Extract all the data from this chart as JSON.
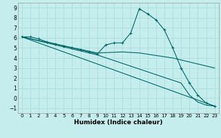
{
  "xlabel": "Humidex (Indice chaleur)",
  "bg_color": "#c5eded",
  "line_color": "#006666",
  "grid_color": "#aadddd",
  "xlim": [
    -0.5,
    23.5
  ],
  "ylim": [
    -1.5,
    9.5
  ],
  "xticks": [
    0,
    1,
    2,
    3,
    4,
    5,
    6,
    7,
    8,
    9,
    10,
    11,
    12,
    13,
    14,
    15,
    16,
    17,
    18,
    19,
    20,
    21,
    22,
    23
  ],
  "yticks": [
    -1,
    0,
    1,
    2,
    3,
    4,
    5,
    6,
    7,
    8,
    9
  ],
  "lines": [
    {
      "x": [
        0,
        1,
        2,
        3,
        4,
        5,
        6,
        7,
        8,
        9,
        10,
        11,
        12,
        13,
        14,
        15,
        16,
        17,
        18,
        19,
        20,
        21,
        22,
        23
      ],
      "y": [
        6.1,
        6.1,
        5.9,
        5.6,
        5.4,
        5.2,
        5.0,
        4.8,
        4.6,
        4.4,
        5.3,
        5.5,
        5.5,
        6.5,
        8.9,
        8.4,
        7.8,
        6.8,
        5.0,
        3.0,
        1.5,
        0.3,
        -0.5,
        -0.8
      ],
      "marker": true
    },
    {
      "x": [
        0,
        23
      ],
      "y": [
        6.1,
        -0.8
      ],
      "marker": false
    },
    {
      "x": [
        0,
        9,
        12,
        14,
        18,
        23
      ],
      "y": [
        6.1,
        4.5,
        4.6,
        4.5,
        4.0,
        3.0
      ],
      "marker": false
    },
    {
      "x": [
        0,
        9,
        19,
        20,
        21,
        22,
        23
      ],
      "y": [
        6.1,
        4.3,
        1.5,
        0.3,
        -0.4,
        -0.7,
        -0.8
      ],
      "marker": false
    }
  ]
}
